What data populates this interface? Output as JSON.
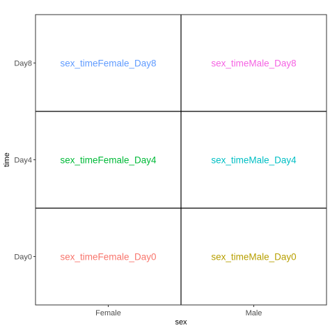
{
  "chart_data": {
    "type": "table",
    "title": "",
    "xlabel": "sex",
    "ylabel": "time",
    "x_categories": [
      "Female",
      "Male"
    ],
    "y_categories": [
      "Day0",
      "Day4",
      "Day8"
    ],
    "grid": false,
    "legend": "none",
    "cells": [
      {
        "x": "Female",
        "y": "Day8",
        "label": "sex_timeFemale_Day8",
        "color": "#619CFF"
      },
      {
        "x": "Male",
        "y": "Day8",
        "label": "sex_timeMale_Day8",
        "color": "#F564E3"
      },
      {
        "x": "Female",
        "y": "Day4",
        "label": "sex_timeFemale_Day4",
        "color": "#00BA38"
      },
      {
        "x": "Male",
        "y": "Day4",
        "label": "sex_timeMale_Day4",
        "color": "#00BFC4"
      },
      {
        "x": "Female",
        "y": "Day0",
        "label": "sex_timeFemale_Day0",
        "color": "#F8766D"
      },
      {
        "x": "Male",
        "y": "Day0",
        "label": "sex_timeMale_Day0",
        "color": "#B79F00"
      }
    ]
  }
}
